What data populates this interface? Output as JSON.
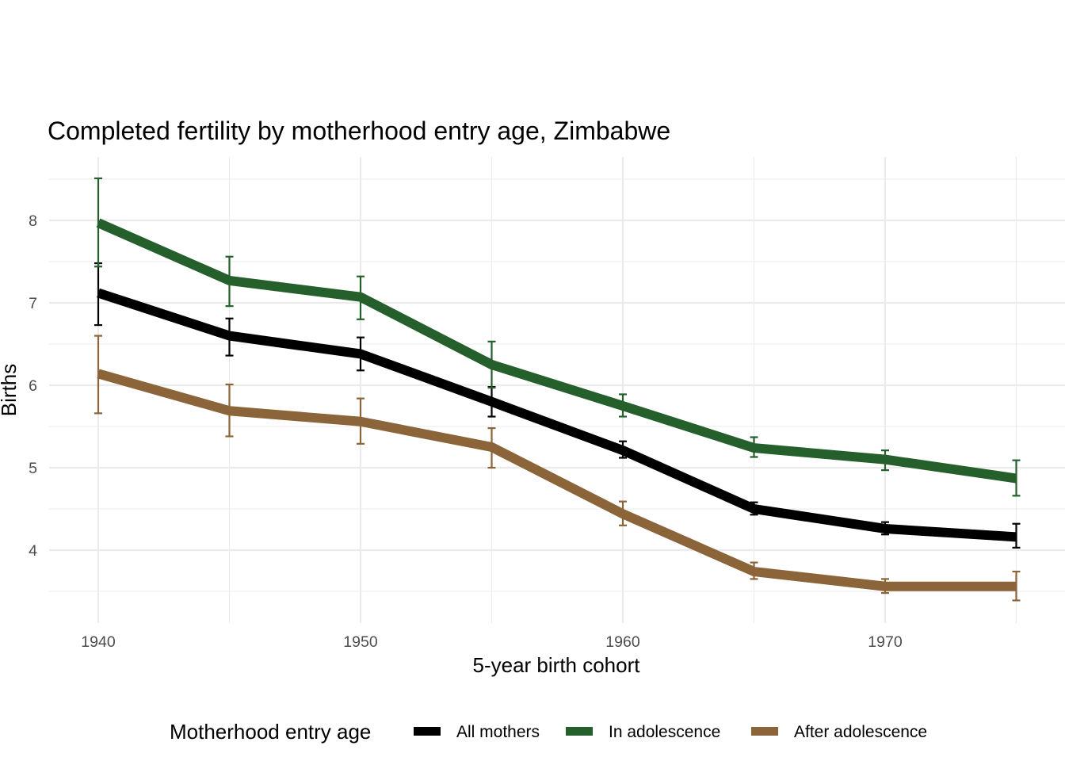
{
  "chart_data": {
    "type": "line",
    "title": "Completed fertility by motherhood entry age,  Zimbabwe",
    "xlabel": "5-year birth cohort",
    "ylabel": "Births",
    "x": [
      1940,
      1945,
      1950,
      1955,
      1960,
      1965,
      1970,
      1975
    ],
    "xlim": [
      1938,
      1977
    ],
    "ylim": [
      3.2,
      8.7
    ],
    "x_ticks": [
      1940,
      1950,
      1960,
      1970
    ],
    "x_tick_labels": [
      "1940",
      "1950",
      "1960",
      "1970"
    ],
    "y_ticks": [
      4,
      5,
      6,
      7,
      8
    ],
    "y_tick_labels": [
      "4",
      "5",
      "6",
      "7",
      "8"
    ],
    "grid": true,
    "legend": {
      "title": "Motherhood entry age",
      "position": "bottom"
    },
    "series": [
      {
        "name": "All mothers",
        "color": "#000000",
        "values": [
          7.12,
          6.6,
          6.38,
          5.8,
          5.21,
          4.5,
          4.26,
          4.16
        ],
        "err_low": [
          6.73,
          6.36,
          6.18,
          5.62,
          5.12,
          4.43,
          4.19,
          4.03
        ],
        "err_high": [
          7.48,
          6.81,
          6.58,
          5.98,
          5.32,
          4.58,
          4.34,
          4.32
        ]
      },
      {
        "name": "In adolescence",
        "color": "#245f2c",
        "values": [
          7.97,
          7.27,
          7.07,
          6.25,
          5.75,
          5.24,
          5.1,
          4.87
        ],
        "err_low": [
          7.44,
          6.96,
          6.8,
          5.97,
          5.62,
          5.13,
          4.97,
          4.66
        ],
        "err_high": [
          8.51,
          7.56,
          7.32,
          6.53,
          5.89,
          5.37,
          5.21,
          5.09
        ]
      },
      {
        "name": "After adolescence",
        "color": "#8c6439",
        "values": [
          6.14,
          5.69,
          5.56,
          5.25,
          4.44,
          3.74,
          3.56,
          3.56
        ],
        "err_low": [
          5.66,
          5.38,
          5.29,
          5.0,
          4.3,
          3.65,
          3.48,
          3.39
        ],
        "err_high": [
          6.6,
          6.01,
          5.84,
          5.48,
          4.59,
          3.85,
          3.65,
          3.74
        ]
      }
    ]
  }
}
